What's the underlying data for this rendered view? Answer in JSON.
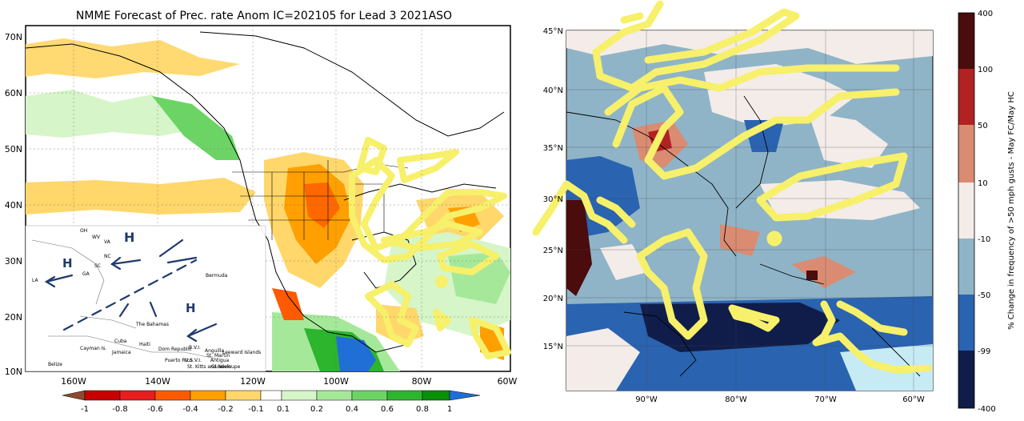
{
  "left": {
    "title": "NMME Forecast of Prec. rate Anom IC=202105 for Lead 3 2021ASO",
    "lat_labels": [
      "70N",
      "60N",
      "50N",
      "40N",
      "30N",
      "20N",
      "10N"
    ],
    "lon_labels": [
      "160W",
      "140W",
      "120W",
      "100W",
      "80W",
      "60W"
    ],
    "colorbar": {
      "ticks": [
        "-1",
        "-0.8",
        "-0.6",
        "-0.4",
        "-0.2",
        "-0.1",
        "0.1",
        "0.2",
        "0.4",
        "0.6",
        "0.8",
        "1"
      ],
      "colors": [
        "#8c4a2f",
        "#c80000",
        "#e81e1e",
        "#ff5a00",
        "#ff9f00",
        "#ffd76a",
        "#ffffff",
        "#d6f5c8",
        "#a6e89a",
        "#6cd465",
        "#2db52d",
        "#0a8f0a",
        "#1f6fd6"
      ]
    },
    "inset": {
      "labels": [
        "OH",
        "WV",
        "VA",
        "NC",
        "SC",
        "GA",
        "LA",
        "Bermuda",
        "The Bahamas",
        "Cayman Is.",
        "Jamaica",
        "Haiti",
        "Dom Republic",
        "Puerto Rico",
        "U.S.V.I.",
        "B.V.I.",
        "Anguilla",
        "St. Martin",
        "St. Kitts and Nevis",
        "Antigua",
        "Guadeloupe",
        "Leeward Islands",
        "Belize",
        "Cuba"
      ],
      "high_markers": [
        "H",
        "H",
        "H"
      ]
    }
  },
  "right": {
    "lat_labels": [
      "45°N",
      "40°N",
      "35°N",
      "30°N",
      "25°N",
      "20°N",
      "15°N"
    ],
    "lon_labels": [
      "90°W",
      "80°W",
      "70°W",
      "60°W"
    ],
    "colorbar": {
      "title": "% Change in frequency of >50 mph gusts - May FC/May HC",
      "ticks": [
        "400",
        "100",
        "50",
        "10",
        "-10",
        "-50",
        "-99",
        "-400"
      ],
      "colors": [
        "#4a0c0c",
        "#b22222",
        "#d98c72",
        "#f4ece8",
        "#8fb4c8",
        "#2a63b0",
        "#101d4a"
      ]
    }
  },
  "colors": {
    "highlight": "#f7f06a",
    "ocean_blue": "#8fb4c8",
    "deep_blue": "#1f3a86"
  }
}
